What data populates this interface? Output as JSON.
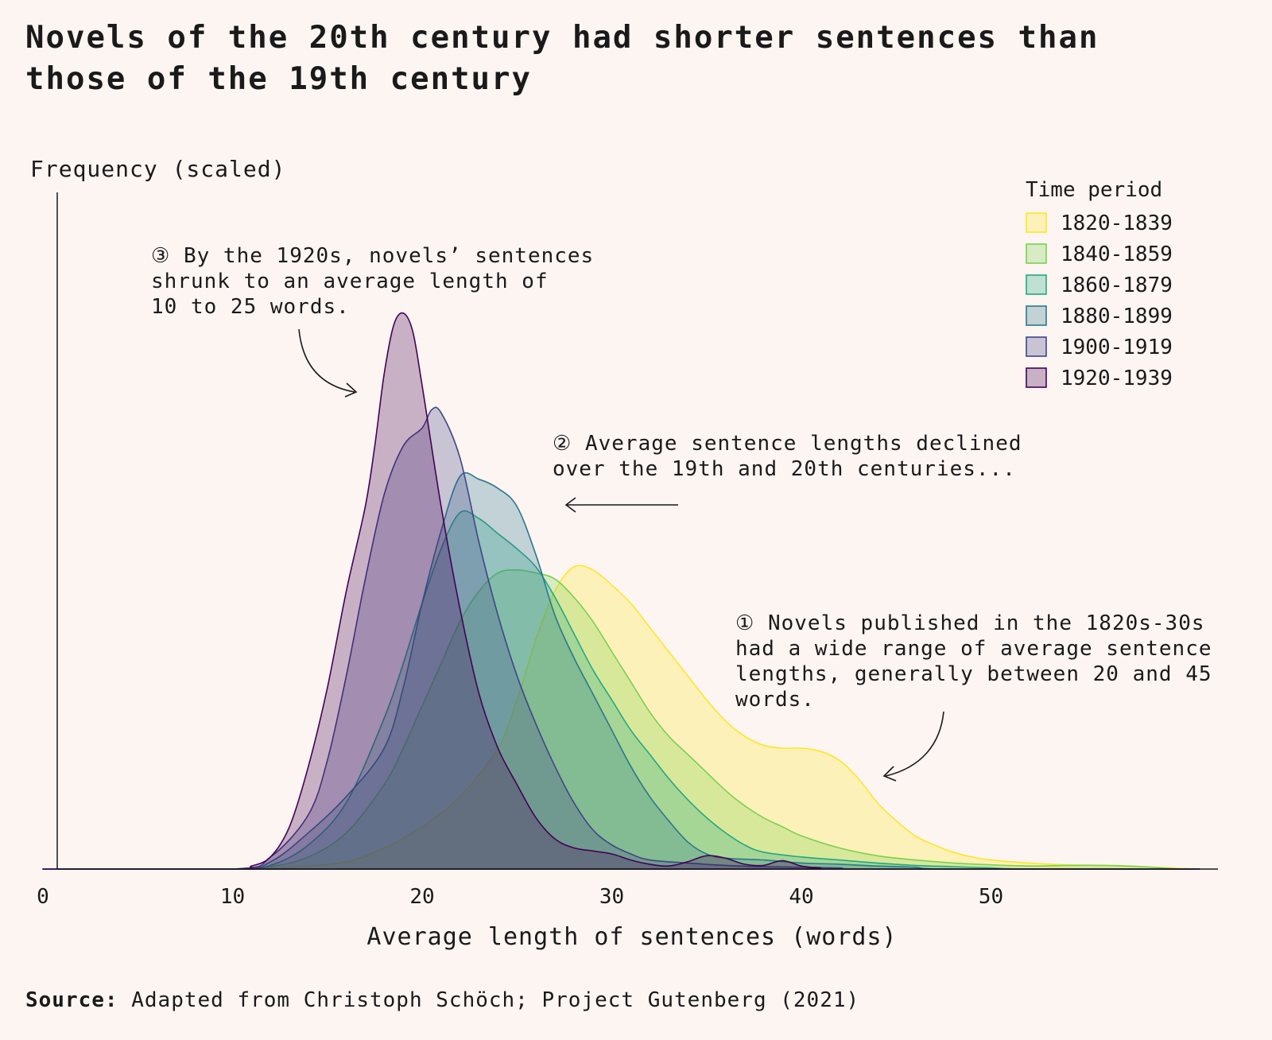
{
  "title": "Novels of the 20th century had shorter sentences than those of the 19th century",
  "source_label": "Source:",
  "source_text": "Adapted from Christoph Schöch; Project Gutenberg (2021)",
  "chart_data": {
    "type": "area",
    "title": "Novels of the 20th century had shorter sentences than those of the 19th century",
    "xlabel": "Average length of sentences (words)",
    "ylabel": "Frequency (scaled)",
    "xlim": [
      0,
      61
    ],
    "ylim": [
      0,
      1.0
    ],
    "xticks": [
      0,
      10,
      20,
      30,
      40,
      50
    ],
    "grid": false,
    "legend": {
      "title": "Time period",
      "placement": "top-right"
    },
    "series": [
      {
        "name": "1820-1839",
        "color": "#fde725",
        "opacity": 0.28,
        "points": [
          [
            0,
            0
          ],
          [
            10,
            0
          ],
          [
            13,
            0.003
          ],
          [
            16,
            0.012
          ],
          [
            18,
            0.035
          ],
          [
            20,
            0.07
          ],
          [
            22,
            0.12
          ],
          [
            24,
            0.2
          ],
          [
            25,
            0.28
          ],
          [
            26,
            0.38
          ],
          [
            27,
            0.46
          ],
          [
            28,
            0.5
          ],
          [
            29,
            0.495
          ],
          [
            30,
            0.47
          ],
          [
            31,
            0.44
          ],
          [
            32,
            0.4
          ],
          [
            33,
            0.36
          ],
          [
            34,
            0.32
          ],
          [
            35,
            0.28
          ],
          [
            36,
            0.245
          ],
          [
            37,
            0.22
          ],
          [
            38,
            0.205
          ],
          [
            39,
            0.2
          ],
          [
            40,
            0.2
          ],
          [
            41,
            0.195
          ],
          [
            42,
            0.18
          ],
          [
            43,
            0.15
          ],
          [
            44,
            0.11
          ],
          [
            45,
            0.08
          ],
          [
            46,
            0.055
          ],
          [
            47,
            0.04
          ],
          [
            48,
            0.028
          ],
          [
            49,
            0.02
          ],
          [
            50,
            0.015
          ],
          [
            52,
            0.01
          ],
          [
            54,
            0.007
          ],
          [
            56,
            0.006
          ],
          [
            58,
            0.004
          ],
          [
            60,
            0.001
          ],
          [
            61,
            0
          ]
        ]
      },
      {
        "name": "1840-1859",
        "color": "#7ad151",
        "opacity": 0.28,
        "points": [
          [
            0,
            0
          ],
          [
            10,
            0
          ],
          [
            12,
            0.004
          ],
          [
            14,
            0.02
          ],
          [
            16,
            0.06
          ],
          [
            18,
            0.14
          ],
          [
            19,
            0.2
          ],
          [
            20,
            0.27
          ],
          [
            21,
            0.34
          ],
          [
            22,
            0.41
          ],
          [
            23,
            0.46
          ],
          [
            24,
            0.49
          ],
          [
            25,
            0.495
          ],
          [
            26,
            0.49
          ],
          [
            27,
            0.48
          ],
          [
            28,
            0.45
          ],
          [
            29,
            0.41
          ],
          [
            30,
            0.36
          ],
          [
            31,
            0.31
          ],
          [
            32,
            0.26
          ],
          [
            33,
            0.22
          ],
          [
            34,
            0.19
          ],
          [
            35,
            0.16
          ],
          [
            36,
            0.13
          ],
          [
            37,
            0.105
          ],
          [
            38,
            0.085
          ],
          [
            39,
            0.07
          ],
          [
            40,
            0.055
          ],
          [
            42,
            0.035
          ],
          [
            44,
            0.022
          ],
          [
            46,
            0.015
          ],
          [
            48,
            0.01
          ],
          [
            50,
            0.007
          ],
          [
            52,
            0.005
          ],
          [
            54,
            0.006
          ],
          [
            56,
            0.006
          ],
          [
            58,
            0.004
          ],
          [
            60,
            0
          ],
          [
            61,
            0
          ]
        ]
      },
      {
        "name": "1860-1879",
        "color": "#22a884",
        "opacity": 0.28,
        "points": [
          [
            0,
            0
          ],
          [
            10,
            0
          ],
          [
            12,
            0.006
          ],
          [
            14,
            0.04
          ],
          [
            16,
            0.11
          ],
          [
            18,
            0.25
          ],
          [
            19,
            0.34
          ],
          [
            20,
            0.44
          ],
          [
            21,
            0.53
          ],
          [
            22,
            0.59
          ],
          [
            23,
            0.58
          ],
          [
            24,
            0.555
          ],
          [
            25,
            0.53
          ],
          [
            26,
            0.5
          ],
          [
            27,
            0.45
          ],
          [
            28,
            0.39
          ],
          [
            29,
            0.33
          ],
          [
            30,
            0.28
          ],
          [
            31,
            0.23
          ],
          [
            32,
            0.19
          ],
          [
            33,
            0.15
          ],
          [
            34,
            0.115
          ],
          [
            35,
            0.085
          ],
          [
            36,
            0.06
          ],
          [
            37,
            0.04
          ],
          [
            38,
            0.028
          ],
          [
            40,
            0.02
          ],
          [
            42,
            0.015
          ],
          [
            44,
            0.01
          ],
          [
            46,
            0.006
          ],
          [
            48,
            0.004
          ],
          [
            50,
            0.002
          ],
          [
            52,
            0
          ],
          [
            61,
            0
          ]
        ]
      },
      {
        "name": "1880-1899",
        "color": "#2a788e",
        "opacity": 0.28,
        "points": [
          [
            0,
            0
          ],
          [
            10,
            0
          ],
          [
            12,
            0.012
          ],
          [
            14,
            0.06
          ],
          [
            16,
            0.12
          ],
          [
            18,
            0.2
          ],
          [
            19,
            0.3
          ],
          [
            20,
            0.44
          ],
          [
            21,
            0.56
          ],
          [
            22,
            0.65
          ],
          [
            23,
            0.645
          ],
          [
            24,
            0.63
          ],
          [
            25,
            0.6
          ],
          [
            26,
            0.52
          ],
          [
            27,
            0.42
          ],
          [
            28,
            0.35
          ],
          [
            29,
            0.29
          ],
          [
            30,
            0.23
          ],
          [
            31,
            0.17
          ],
          [
            32,
            0.12
          ],
          [
            33,
            0.08
          ],
          [
            34,
            0.045
          ],
          [
            35,
            0.025
          ],
          [
            36,
            0.018
          ],
          [
            38,
            0.015
          ],
          [
            40,
            0.01
          ],
          [
            42,
            0.008
          ],
          [
            44,
            0.005
          ],
          [
            46,
            0.003
          ],
          [
            48,
            0
          ],
          [
            61,
            0
          ]
        ]
      },
      {
        "name": "1900-1919",
        "color": "#414487",
        "opacity": 0.28,
        "points": [
          [
            0,
            0
          ],
          [
            10,
            0
          ],
          [
            12,
            0.02
          ],
          [
            14,
            0.09
          ],
          [
            15,
            0.18
          ],
          [
            16,
            0.32
          ],
          [
            17,
            0.48
          ],
          [
            18,
            0.62
          ],
          [
            19,
            0.7
          ],
          [
            20,
            0.73
          ],
          [
            20.5,
            0.76
          ],
          [
            21,
            0.755
          ],
          [
            22,
            0.68
          ],
          [
            23,
            0.54
          ],
          [
            24,
            0.42
          ],
          [
            25,
            0.32
          ],
          [
            26,
            0.24
          ],
          [
            27,
            0.17
          ],
          [
            28,
            0.11
          ],
          [
            29,
            0.065
          ],
          [
            30,
            0.04
          ],
          [
            31,
            0.025
          ],
          [
            32,
            0.015
          ],
          [
            34,
            0.01
          ],
          [
            36,
            0.006
          ],
          [
            38,
            0.004
          ],
          [
            40,
            0.003
          ],
          [
            42,
            0.002
          ],
          [
            44,
            0
          ],
          [
            61,
            0
          ]
        ]
      },
      {
        "name": "1920-1939",
        "color": "#440154",
        "opacity": 0.28,
        "points": [
          [
            0,
            0
          ],
          [
            10,
            0
          ],
          [
            11,
            0.005
          ],
          [
            12,
            0.02
          ],
          [
            13,
            0.07
          ],
          [
            14,
            0.17
          ],
          [
            15,
            0.3
          ],
          [
            16,
            0.46
          ],
          [
            17,
            0.6
          ],
          [
            17.5,
            0.7
          ],
          [
            18,
            0.82
          ],
          [
            18.5,
            0.9
          ],
          [
            19,
            0.92
          ],
          [
            19.5,
            0.89
          ],
          [
            20,
            0.8
          ],
          [
            21,
            0.6
          ],
          [
            22,
            0.43
          ],
          [
            23,
            0.29
          ],
          [
            24,
            0.2
          ],
          [
            25,
            0.14
          ],
          [
            26,
            0.085
          ],
          [
            27,
            0.05
          ],
          [
            28,
            0.035
          ],
          [
            29,
            0.03
          ],
          [
            30,
            0.025
          ],
          [
            31,
            0.015
          ],
          [
            32,
            0.008
          ],
          [
            33,
            0.005
          ],
          [
            34,
            0.012
          ],
          [
            35,
            0.022
          ],
          [
            36,
            0.018
          ],
          [
            37,
            0.008
          ],
          [
            38,
            0.006
          ],
          [
            39,
            0.014
          ],
          [
            40,
            0.005
          ],
          [
            41,
            0.002
          ],
          [
            42,
            0
          ],
          [
            61,
            0
          ]
        ]
      }
    ]
  },
  "annotations": [
    {
      "number": "③",
      "lines": [
        "By the 1920s, novels’ sentences",
        "shrunk to an average length of",
        "10 to 25 words."
      ]
    },
    {
      "number": "②",
      "lines": [
        "Average sentence lengths declined",
        "over the 19th and 20th centuries..."
      ]
    },
    {
      "number": "①",
      "lines": [
        "Novels published in the 1820s-30s",
        "had a wide range of average sentence",
        "lengths, generally between 20 and 45",
        "words."
      ]
    }
  ]
}
